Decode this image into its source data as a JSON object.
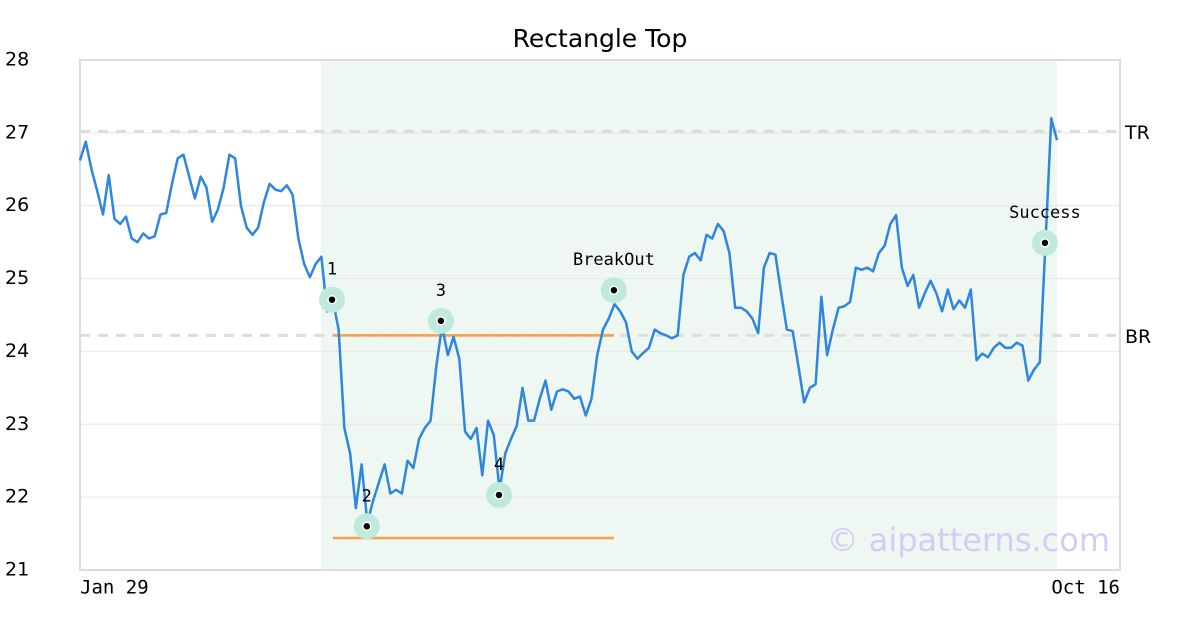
{
  "chart_data": {
    "type": "line",
    "title": "Rectangle Top",
    "categories": [
      "Jan 29",
      null,
      null,
      null,
      null,
      null,
      null,
      null,
      null,
      null,
      null,
      null,
      null,
      null,
      null,
      null,
      null,
      null,
      null,
      null,
      null,
      null,
      null,
      null,
      null,
      null,
      null,
      null,
      null,
      null,
      null,
      null,
      null,
      null,
      null,
      null,
      null,
      null,
      null,
      null,
      null,
      null,
      null,
      null,
      null,
      null,
      null,
      null,
      null,
      null,
      null,
      null,
      null,
      null,
      null,
      null,
      null,
      null,
      null,
      null,
      null,
      null,
      null,
      null,
      null,
      null,
      null,
      null,
      null,
      null,
      null,
      null,
      null,
      null,
      null,
      null,
      null,
      null,
      null,
      null,
      null,
      null,
      null,
      null,
      null,
      null,
      null,
      null,
      null,
      null,
      null,
      null,
      null,
      null,
      null,
      null,
      null,
      null,
      null,
      null,
      null,
      null,
      null,
      null,
      null,
      null,
      null,
      null,
      null,
      null,
      null,
      null,
      null,
      null,
      null,
      null,
      null,
      null,
      null,
      null,
      null,
      null,
      null,
      null,
      null,
      null,
      null,
      null,
      null,
      null,
      null,
      null,
      null,
      null,
      null,
      null,
      null,
      null,
      null,
      null,
      null,
      null,
      null,
      null,
      null,
      null,
      null,
      null,
      null,
      null,
      null,
      null,
      null,
      null,
      null,
      null,
      null,
      null,
      null,
      null,
      null,
      null,
      null,
      null,
      null,
      null,
      null,
      null,
      null,
      null,
      "Oct 16"
    ],
    "values": [
      26.62,
      26.88,
      26.5,
      26.2,
      25.88,
      26.42,
      25.82,
      25.75,
      25.85,
      25.55,
      25.5,
      25.62,
      25.55,
      25.58,
      25.88,
      25.9,
      26.3,
      26.65,
      26.7,
      26.4,
      26.1,
      26.4,
      26.25,
      25.78,
      25.95,
      26.25,
      26.7,
      26.65,
      26.0,
      25.7,
      25.6,
      25.7,
      26.05,
      26.3,
      26.22,
      26.2,
      26.28,
      26.15,
      25.55,
      25.2,
      25.02,
      25.2,
      25.3,
      24.55,
      24.7,
      24.3,
      22.95,
      22.6,
      21.85,
      22.45,
      21.65,
      21.95,
      22.2,
      22.45,
      22.05,
      22.1,
      22.05,
      22.5,
      22.4,
      22.8,
      22.95,
      23.05,
      23.8,
      24.35,
      23.95,
      24.2,
      23.9,
      22.9,
      22.8,
      22.95,
      22.3,
      23.05,
      22.85,
      22.1,
      22.6,
      22.8,
      22.98,
      23.5,
      23.05,
      23.05,
      23.35,
      23.6,
      23.2,
      23.45,
      23.48,
      23.45,
      23.35,
      23.38,
      23.12,
      23.35,
      23.95,
      24.3,
      24.45,
      24.65,
      24.55,
      24.4,
      24.0,
      23.9,
      23.98,
      24.05,
      24.3,
      24.25,
      24.22,
      24.18,
      24.22,
      25.05,
      25.3,
      25.35,
      25.25,
      25.6,
      25.55,
      25.75,
      25.65,
      25.35,
      24.6,
      24.6,
      24.55,
      24.45,
      24.25,
      25.15,
      25.35,
      25.33,
      24.8,
      24.3,
      24.28,
      23.8,
      23.3,
      23.5,
      23.55,
      24.75,
      23.95,
      24.3,
      24.6,
      24.62,
      24.68,
      25.15,
      25.12,
      25.15,
      25.1,
      25.35,
      25.45,
      25.75,
      25.87,
      25.15,
      24.9,
      25.05,
      24.6,
      24.8,
      24.97,
      24.8,
      24.55,
      24.85,
      24.58,
      24.7,
      24.6,
      24.85,
      23.88,
      23.97,
      23.92,
      24.05,
      24.12,
      24.05,
      24.05,
      24.12,
      24.08,
      23.6,
      23.75,
      23.85,
      25.5,
      27.2,
      26.9
    ],
    "color": "#2e86de",
    "ylim": [
      21,
      28
    ],
    "yticks": [
      21,
      22,
      23,
      24,
      25,
      26,
      27,
      28
    ],
    "grid": true,
    "levels": [
      {
        "label": "TR",
        "value": 27.02
      },
      {
        "label": "BR",
        "value": 24.22
      }
    ],
    "pattern_lines": [
      {
        "value": 24.22,
        "x": [
          44,
          92.9
        ]
      },
      {
        "value": 21.44,
        "x": [
          44,
          92.9
        ]
      }
    ],
    "pattern_color": "#f5a04a",
    "shade": {
      "x": [
        41.9,
        170
      ],
      "color": "#eff7f3"
    },
    "markers": [
      {
        "label": "1",
        "x": 43.85,
        "value": 24.71
      },
      {
        "label": "2",
        "x": 49.9,
        "value": 21.6
      },
      {
        "label": "3",
        "x": 62.8,
        "value": 24.42
      },
      {
        "label": "4",
        "x": 72.9,
        "value": 22.03
      },
      {
        "label": "BreakOut",
        "x": 92.9,
        "value": 24.84
      },
      {
        "label": "Success",
        "x": 167.9,
        "value": 25.49
      }
    ],
    "watermark": "© aipatterns.com"
  }
}
